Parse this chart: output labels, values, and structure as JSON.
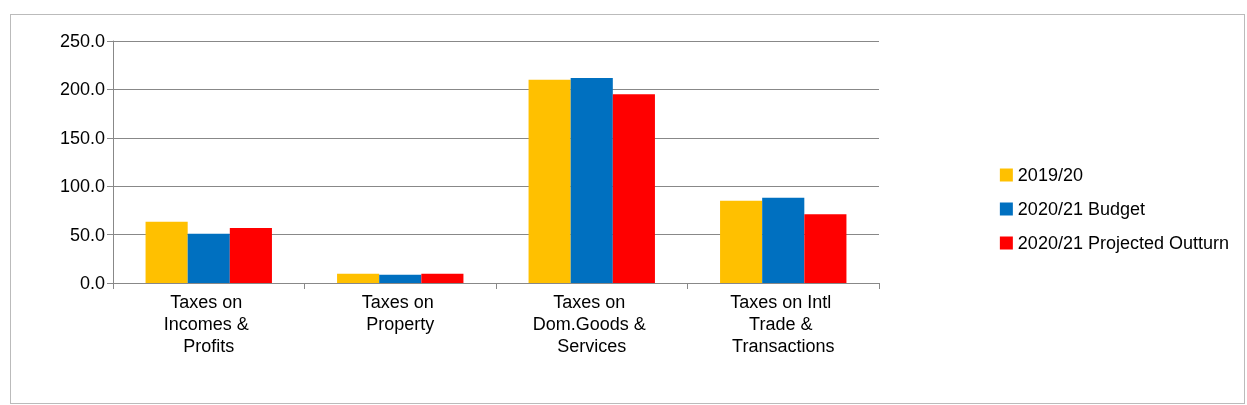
{
  "chart_data": {
    "type": "bar",
    "categories": [
      "Taxes on Incomes & Profits",
      "Taxes on Property",
      "Taxes on Dom.Goods & Services",
      "Taxes on Intl Trade & Transactions"
    ],
    "series": [
      {
        "name": "2019/20",
        "color": "#ffc000",
        "values": [
          63.4,
          9.6,
          210.0,
          85.0
        ]
      },
      {
        "name": "2020/21 Budget",
        "color": "#0070c0",
        "values": [
          50.8,
          8.4,
          211.7,
          88.0
        ]
      },
      {
        "name": "2020/21 Projected Outturn",
        "color": "#ff0000",
        "values": [
          56.8,
          9.6,
          195.0,
          71.0
        ]
      }
    ],
    "ylim": [
      0,
      250
    ],
    "yticks": [
      {
        "value": 0,
        "label": "0.0"
      },
      {
        "value": 50,
        "label": "50.0"
      },
      {
        "value": 100,
        "label": "100.0"
      },
      {
        "value": 150,
        "label": "150.0"
      },
      {
        "value": 200,
        "label": "200.0"
      },
      {
        "value": 250,
        "label": "250.0"
      }
    ],
    "grid": "y",
    "legend": "right"
  }
}
